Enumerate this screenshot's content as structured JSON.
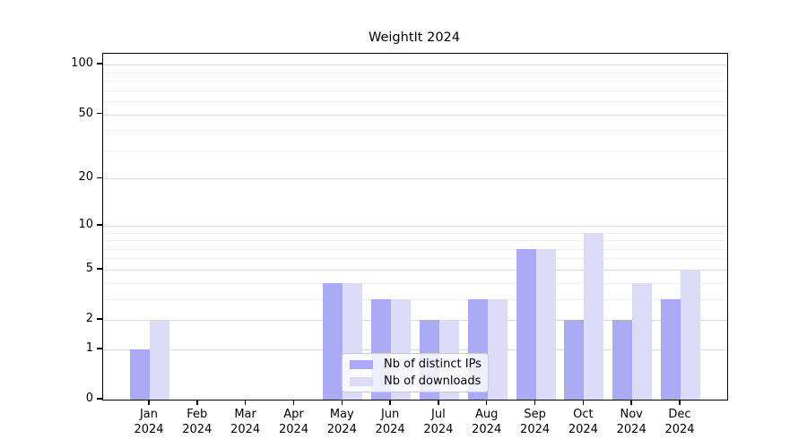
{
  "title": "WeightIt 2024",
  "chart_data": {
    "type": "bar",
    "title": "WeightIt 2024",
    "xlabel": "",
    "ylabel": "",
    "categories": [
      "Jan 2024",
      "Feb 2024",
      "Mar 2024",
      "Apr 2024",
      "May 2024",
      "Jun 2024",
      "Jul 2024",
      "Aug 2024",
      "Sep 2024",
      "Oct 2024",
      "Nov 2024",
      "Dec 2024"
    ],
    "series": [
      {
        "name": "Nb of distinct IPs",
        "color": "#abaaf5",
        "values": [
          1,
          0,
          0,
          0,
          4,
          3,
          2,
          3,
          7,
          2,
          2,
          3
        ]
      },
      {
        "name": "Nb of downloads",
        "color": "#dcdcf8",
        "values": [
          2,
          0,
          0,
          0,
          4,
          3,
          2,
          3,
          7,
          9,
          4,
          5
        ]
      }
    ],
    "yscale": "log1p",
    "ylim": [
      0,
      117
    ],
    "yticks": [
      0,
      1,
      2,
      5,
      10,
      20,
      50,
      100
    ],
    "major_gridlines": [
      1,
      2,
      5,
      10,
      20,
      50,
      100
    ],
    "minor_gridlines": [
      3,
      4,
      6,
      7,
      8,
      9,
      30,
      40,
      60,
      70,
      80,
      90
    ],
    "grid": true,
    "legend_position": "lower center (inside plot)"
  },
  "colors": {
    "background": "#ffffff",
    "spine": "#000000",
    "major_grid": "#d9d9d9",
    "minor_grid": "#efefef",
    "text": "#000000",
    "legend_border": "#cccccc"
  }
}
